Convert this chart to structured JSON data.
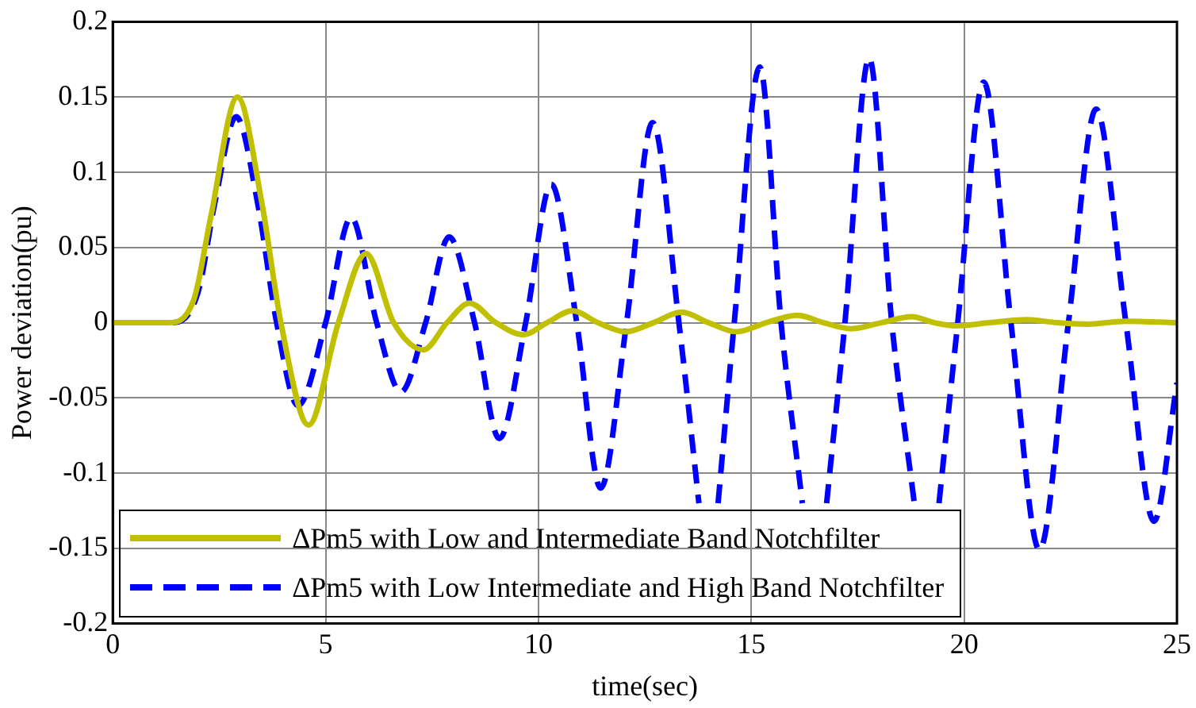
{
  "chart_data": {
    "type": "line",
    "xlabel": "time(sec)",
    "ylabel": "Power deviation(pu)",
    "xlim": [
      0,
      25
    ],
    "xticks": [
      0,
      5,
      10,
      15,
      20,
      25
    ],
    "ylim": [
      -0.2,
      0.2
    ],
    "yticks": [
      -0.2,
      -0.15,
      -0.1,
      -0.05,
      0,
      0.05,
      0.1,
      0.15,
      0.2
    ],
    "grid": true,
    "legend": "bottom left",
    "series": [
      {
        "name": "ΔPm5 with Low and Intermediate Band Notchfilter",
        "color": "#c0c000",
        "line_style": "solid",
        "x": [
          0,
          1.3,
          1.9,
          2.3,
          2.93,
          3.5,
          3.95,
          4.6,
          5.3,
          5.95,
          6.6,
          7.3,
          7.85,
          8.38,
          9.0,
          9.65,
          10.2,
          10.8,
          11.4,
          12.04,
          12.7,
          13.36,
          14.0,
          14.65,
          15.35,
          16.08,
          16.7,
          17.35,
          18.05,
          18.77,
          19.3,
          19.8,
          20.6,
          21.46,
          22.2,
          22.9,
          23.8,
          25
        ],
        "values": [
          0,
          0,
          0.015,
          0.07,
          0.15,
          0.08,
          0,
          -0.068,
          0,
          0.046,
          0,
          -0.018,
          0,
          0.013,
          0,
          -0.008,
          0,
          0.008,
          0,
          -0.006,
          0,
          0.007,
          0,
          -0.006,
          0,
          0.005,
          0,
          -0.004,
          0,
          0.004,
          0,
          -0.002,
          0,
          0.002,
          0,
          -0.001,
          0.001,
          0
        ]
      },
      {
        "name": "ΔPm5 with Low Intermediate and High Band Notchfilter",
        "color": "#0000ff",
        "line_style": "dashed",
        "x": [
          0,
          1.4,
          2.0,
          2.4,
          2.9,
          3.4,
          3.85,
          4.35,
          5.0,
          5.6,
          6.2,
          6.77,
          7.35,
          7.9,
          8.5,
          9.08,
          9.7,
          10.3,
          10.9,
          11.46,
          12.07,
          12.68,
          13.3,
          13.77,
          13.95,
          14.22,
          14.6,
          15.2,
          15.7,
          16.2,
          16.5,
          16.77,
          17.2,
          17.77,
          18.3,
          18.83,
          19.1,
          19.41,
          19.85,
          20.46,
          21.1,
          21.77,
          22.45,
          23.1,
          23.8,
          24.46,
          25
        ],
        "values": [
          0,
          0,
          0.02,
          0.08,
          0.137,
          0.08,
          0,
          -0.055,
          0,
          0.07,
          0,
          -0.046,
          0,
          0.057,
          0,
          -0.077,
          0,
          0.092,
          0,
          -0.11,
          0,
          0.133,
          0,
          -0.12,
          null,
          -0.12,
          0,
          0.17,
          0,
          -0.12,
          null,
          -0.12,
          0,
          0.176,
          0,
          -0.12,
          null,
          -0.12,
          0,
          0.16,
          0,
          -0.151,
          0,
          0.142,
          0,
          -0.132,
          -0.04
        ]
      }
    ]
  }
}
